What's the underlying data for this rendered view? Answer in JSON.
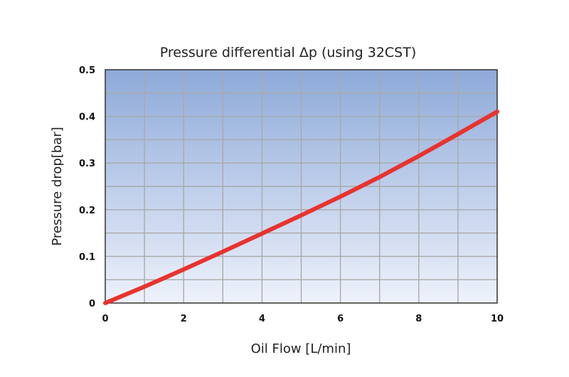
{
  "chart_data": {
    "type": "line",
    "title": "Pressure differential Δp (using 32CST)",
    "xlabel": "Oil Flow [L/min]",
    "ylabel": "Pressure drop[bar]",
    "xlim": [
      0,
      10
    ],
    "ylim": [
      0,
      0.5
    ],
    "xticks": [
      "0",
      "2",
      "4",
      "6",
      "8",
      "10"
    ],
    "yticks": [
      "0",
      "0.1",
      "0.2",
      "0.3",
      "0.4",
      "0.5"
    ],
    "grid": true,
    "series": [
      {
        "color": "#e8332f",
        "x": [
          0,
          1,
          2,
          3,
          4,
          5,
          6,
          7,
          8,
          9,
          10
        ],
        "y": [
          0,
          0.035,
          0.072,
          0.11,
          0.149,
          0.188,
          0.228,
          0.27,
          0.315,
          0.362,
          0.41
        ]
      }
    ],
    "plot_gradient": [
      "#8eaad9",
      "#eef2fb"
    ]
  }
}
